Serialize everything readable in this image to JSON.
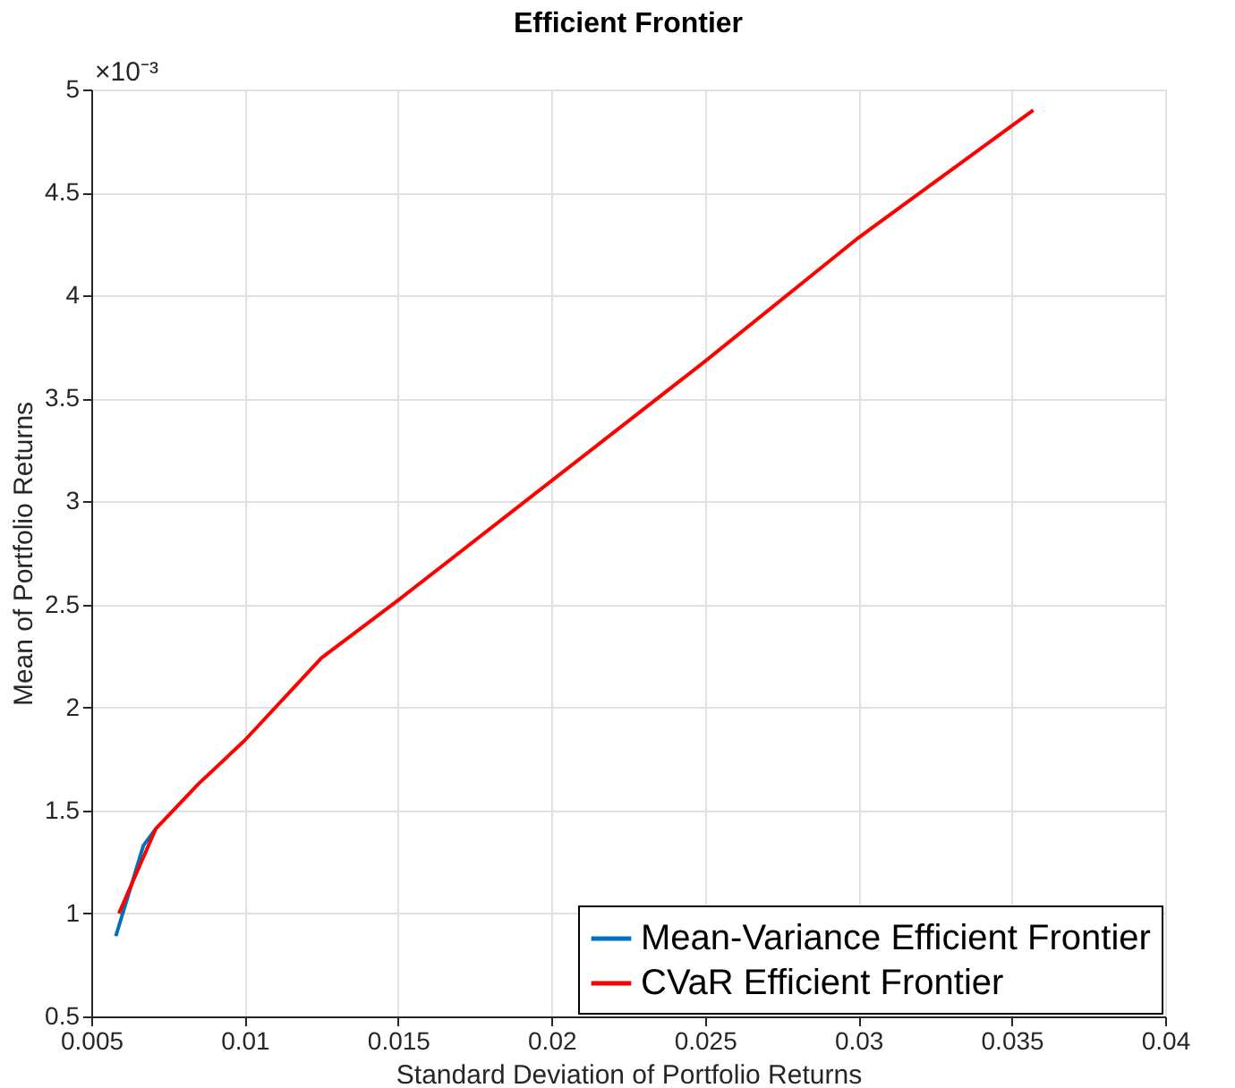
{
  "chart_data": {
    "type": "line",
    "title": "Efficient Frontier",
    "xlabel": "Standard Deviation of Portfolio Returns",
    "ylabel": "Mean of Portfolio Returns",
    "annotations": [
      "×10⁻³"
    ],
    "xlim": [
      0.005,
      0.04
    ],
    "xticks": [
      0.005,
      0.01,
      0.015,
      0.02,
      0.025,
      0.03,
      0.035,
      0.04
    ],
    "ylim": [
      0.5,
      5
    ],
    "yticks": [
      0.5,
      1,
      1.5,
      2,
      2.5,
      3,
      3.5,
      4,
      4.5,
      5
    ],
    "grid": true,
    "legend": "bottom right",
    "line_style": "solid",
    "marker": "none",
    "series": [
      {
        "name": "Mean-Variance Efficient Frontier",
        "color": "#0072bd",
        "x": [
          0.0058,
          0.0067,
          0.0071
        ],
        "values": [
          0.89,
          1.33,
          1.41
        ]
      },
      {
        "name": "CVaR Efficient Frontier",
        "color": "#ff0000",
        "x": [
          0.0059,
          0.0071,
          0.0085,
          0.01,
          0.0125,
          0.015,
          0.02,
          0.025,
          0.03,
          0.0357
        ],
        "values": [
          1.0,
          1.41,
          1.63,
          1.84,
          2.24,
          2.52,
          3.1,
          3.68,
          4.28,
          4.9
        ]
      }
    ]
  }
}
